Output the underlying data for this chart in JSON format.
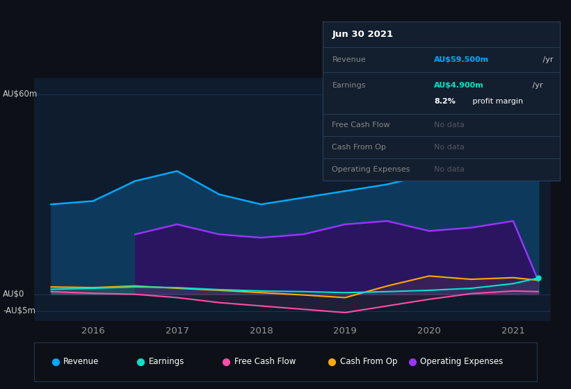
{
  "bg_color": "#0d1117",
  "plot_bg_color": "#0e1c2e",
  "grid_color": "#1e3a5a",
  "years_x": [
    2015.5,
    2016.0,
    2016.5,
    2017.0,
    2017.5,
    2018.0,
    2018.5,
    2019.0,
    2019.5,
    2020.0,
    2020.5,
    2021.0,
    2021.3
  ],
  "revenue": [
    27,
    28,
    34,
    37,
    30,
    27,
    29,
    31,
    33,
    36,
    38,
    48,
    59.5
  ],
  "earnings": [
    1.5,
    1.8,
    2.2,
    2.0,
    1.4,
    1.0,
    0.8,
    0.5,
    0.8,
    1.2,
    1.8,
    3.2,
    4.9
  ],
  "free_cash_flow": [
    0.8,
    0.3,
    0.0,
    -1.0,
    -2.5,
    -3.5,
    -4.5,
    -5.5,
    -3.5,
    -1.5,
    0.2,
    1.0,
    0.8
  ],
  "cash_from_op": [
    2.2,
    2.0,
    2.5,
    1.8,
    1.2,
    0.5,
    -0.2,
    -1.0,
    2.5,
    5.5,
    4.5,
    5.0,
    4.2
  ],
  "operating_expenses_x": [
    2016.5,
    2017.0,
    2017.5,
    2018.0,
    2018.5,
    2019.0,
    2019.5,
    2020.0,
    2020.5,
    2021.0,
    2021.3
  ],
  "operating_expenses": [
    18,
    21,
    18,
    17,
    18,
    21,
    22,
    19,
    20,
    22,
    4
  ],
  "revenue_color": "#00aaff",
  "earnings_color": "#00e5cc",
  "free_cash_flow_color": "#ff4da6",
  "cash_from_op_color": "#ffaa00",
  "operating_expenses_color": "#9933ff",
  "revenue_fill": "#0d3a5c",
  "operating_expenses_fill": "#2a1560",
  "ylim_top": 65,
  "ylim_bottom": -8,
  "y_tick_values": [
    60,
    0,
    -5
  ],
  "y_tick_labels": [
    "AU$60m",
    "AU$0",
    "-AU$5m"
  ],
  "x_ticks": [
    2016,
    2017,
    2018,
    2019,
    2020,
    2021
  ],
  "xlim_left": 2015.3,
  "xlim_right": 2021.45,
  "info_box": {
    "date": "Jun 30 2021",
    "revenue_label": "Revenue",
    "revenue_value": "AU$59.500m",
    "revenue_unit": " /yr",
    "earnings_label": "Earnings",
    "earnings_value": "AU$4.900m",
    "earnings_unit": " /yr",
    "profit_margin": "8.2%",
    "profit_margin_suffix": " profit margin",
    "fcf_label": "Free Cash Flow",
    "fcf_value": "No data",
    "cfo_label": "Cash From Op",
    "cfo_value": "No data",
    "opex_label": "Operating Expenses",
    "opex_value": "No data"
  },
  "legend_labels": [
    "Revenue",
    "Earnings",
    "Free Cash Flow",
    "Cash From Op",
    "Operating Expenses"
  ],
  "legend_colors": [
    "#00aaff",
    "#00e5cc",
    "#ff4da6",
    "#ffaa00",
    "#9933ff"
  ]
}
